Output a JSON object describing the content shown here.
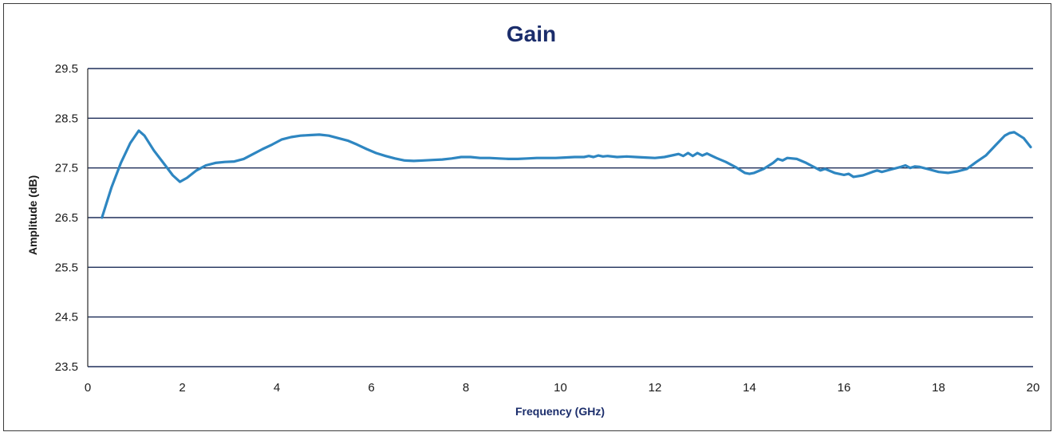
{
  "chart_data": {
    "type": "line",
    "title": "Gain",
    "xlabel": "Frequency (GHz)",
    "ylabel": "Amplitude (dB)",
    "xlim": [
      0,
      20
    ],
    "ylim": [
      23.5,
      29.5
    ],
    "xticks": [
      0,
      2,
      4,
      6,
      8,
      10,
      12,
      14,
      16,
      18,
      20
    ],
    "yticks": [
      23.5,
      24.5,
      25.5,
      26.5,
      27.5,
      28.5,
      29.5
    ],
    "xtick_labels": [
      "0",
      "2",
      "4",
      "6",
      "8",
      "10",
      "12",
      "14",
      "16",
      "18",
      "20"
    ],
    "ytick_labels": [
      "23.5",
      "24.5",
      "25.5",
      "26.5",
      "27.5",
      "28.5",
      "29.5"
    ],
    "grid": "horizontal",
    "legend": "none",
    "series": [
      {
        "color": "#2e86c1",
        "x": [
          0.3,
          0.5,
          0.7,
          0.9,
          1.08,
          1.2,
          1.4,
          1.6,
          1.8,
          1.95,
          2.1,
          2.3,
          2.5,
          2.7,
          2.9,
          3.1,
          3.3,
          3.5,
          3.7,
          3.9,
          4.1,
          4.3,
          4.5,
          4.7,
          4.9,
          5.1,
          5.3,
          5.5,
          5.7,
          5.9,
          6.1,
          6.3,
          6.5,
          6.7,
          6.9,
          7.1,
          7.3,
          7.5,
          7.7,
          7.9,
          8.1,
          8.3,
          8.5,
          8.7,
          8.9,
          9.1,
          9.3,
          9.5,
          9.7,
          9.9,
          10.1,
          10.3,
          10.5,
          10.6,
          10.7,
          10.8,
          10.9,
          11.0,
          11.2,
          11.4,
          11.6,
          11.8,
          12.0,
          12.2,
          12.4,
          12.5,
          12.6,
          12.7,
          12.8,
          12.9,
          13.0,
          13.1,
          13.3,
          13.5,
          13.7,
          13.9,
          14.0,
          14.1,
          14.3,
          14.5,
          14.6,
          14.7,
          14.8,
          15.0,
          15.2,
          15.4,
          15.5,
          15.6,
          15.8,
          16.0,
          16.1,
          16.2,
          16.4,
          16.6,
          16.7,
          16.8,
          17.0,
          17.2,
          17.3,
          17.4,
          17.5,
          17.6,
          17.8,
          18.0,
          18.2,
          18.4,
          18.6,
          18.8,
          19.0,
          19.2,
          19.4,
          19.5,
          19.6,
          19.8,
          19.95
        ],
        "y": [
          26.5,
          27.1,
          27.6,
          28.0,
          28.25,
          28.15,
          27.85,
          27.6,
          27.35,
          27.22,
          27.3,
          27.45,
          27.55,
          27.6,
          27.62,
          27.63,
          27.68,
          27.78,
          27.88,
          27.97,
          28.07,
          28.12,
          28.15,
          28.16,
          28.17,
          28.15,
          28.1,
          28.05,
          27.97,
          27.88,
          27.8,
          27.74,
          27.69,
          27.65,
          27.64,
          27.65,
          27.66,
          27.67,
          27.69,
          27.72,
          27.72,
          27.7,
          27.7,
          27.69,
          27.68,
          27.68,
          27.69,
          27.7,
          27.7,
          27.7,
          27.71,
          27.72,
          27.72,
          27.74,
          27.72,
          27.75,
          27.73,
          27.74,
          27.72,
          27.73,
          27.72,
          27.71,
          27.7,
          27.72,
          27.76,
          27.78,
          27.74,
          27.8,
          27.74,
          27.8,
          27.75,
          27.79,
          27.7,
          27.62,
          27.52,
          27.4,
          27.38,
          27.4,
          27.48,
          27.6,
          27.68,
          27.65,
          27.7,
          27.68,
          27.6,
          27.5,
          27.45,
          27.48,
          27.4,
          27.36,
          27.38,
          27.32,
          27.35,
          27.42,
          27.45,
          27.42,
          27.47,
          27.52,
          27.55,
          27.5,
          27.53,
          27.52,
          27.47,
          27.42,
          27.4,
          27.43,
          27.48,
          27.62,
          27.75,
          27.95,
          28.15,
          28.2,
          28.22,
          28.1,
          27.92
        ]
      }
    ]
  }
}
